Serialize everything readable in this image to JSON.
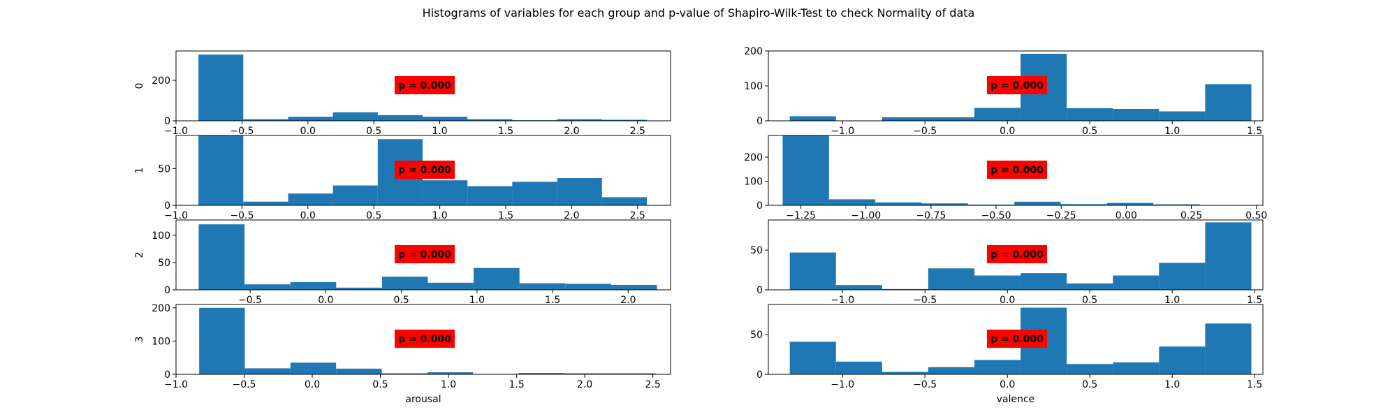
{
  "figure": {
    "title": "Histograms of variables for each group and p-value of Shapiro-Wilk-Test to check Normality of data"
  },
  "chart_data": [
    {
      "type": "bar",
      "column": "arousal",
      "group": "0",
      "ylabel": "0",
      "xlabel": "",
      "p_text": "p = 0.000",
      "xlim": [
        -1.0,
        2.75
      ],
      "ylim": [
        0,
        345
      ],
      "xticks": [
        -1.0,
        -0.5,
        0.0,
        0.5,
        1.0,
        1.5,
        2.0,
        2.5
      ],
      "xtick_labels": [
        "−1.0",
        "−0.5",
        "0.0",
        "0.5",
        "1.0",
        "1.5",
        "2.0",
        "2.5"
      ],
      "yticks": [
        0,
        200
      ],
      "ytick_labels": [
        "0",
        "200"
      ],
      "bin_edges": [
        -0.83,
        -0.49,
        -0.15,
        0.19,
        0.53,
        0.87,
        1.21,
        1.55,
        1.89,
        2.23,
        2.57
      ],
      "counts": [
        327,
        8,
        20,
        42,
        28,
        20,
        8,
        3,
        8,
        5
      ]
    },
    {
      "type": "bar",
      "column": "valence",
      "group": "0",
      "ylabel": "",
      "xlabel": "",
      "p_text": "p = 0.000",
      "xlim": [
        -1.45,
        1.55
      ],
      "ylim": [
        0,
        200
      ],
      "xticks": [
        -1.0,
        -0.5,
        0.0,
        0.5,
        1.0,
        1.5
      ],
      "xtick_labels": [
        "−1.0",
        "−0.5",
        "0.0",
        "0.5",
        "1.0",
        "1.5"
      ],
      "yticks": [
        0,
        100,
        200
      ],
      "ytick_labels": [
        "0",
        "100",
        "200"
      ],
      "bin_edges": [
        -1.32,
        -1.04,
        -0.76,
        -0.48,
        -0.2,
        0.08,
        0.36,
        0.64,
        0.92,
        1.2,
        1.48
      ],
      "counts": [
        13,
        0,
        10,
        10,
        37,
        192,
        36,
        34,
        27,
        105
      ]
    },
    {
      "type": "bar",
      "column": "arousal",
      "group": "1",
      "ylabel": "1",
      "xlabel": "",
      "p_text": "p = 0.000",
      "xlim": [
        -1.0,
        2.75
      ],
      "ylim": [
        0,
        95
      ],
      "xticks": [
        -1.0,
        -0.5,
        0.0,
        0.5,
        1.0,
        1.5,
        2.0,
        2.5
      ],
      "xtick_labels": [
        "−1.0",
        "−0.5",
        "0.0",
        "0.5",
        "1.0",
        "1.5",
        "2.0",
        "2.5"
      ],
      "yticks": [
        0,
        50
      ],
      "ytick_labels": [
        "0",
        "50"
      ],
      "bin_edges": [
        -0.83,
        -0.49,
        -0.15,
        0.19,
        0.53,
        0.87,
        1.21,
        1.55,
        1.89,
        2.23,
        2.57
      ],
      "counts": [
        97,
        5,
        16,
        27,
        90,
        34,
        26,
        32,
        37,
        11
      ]
    },
    {
      "type": "bar",
      "column": "valence",
      "group": "1",
      "ylabel": "",
      "xlabel": "",
      "p_text": "p = 0.000",
      "xlim": [
        -1.375,
        0.525
      ],
      "ylim": [
        0,
        290
      ],
      "xticks": [
        -1.25,
        -1.0,
        -0.75,
        -0.5,
        -0.25,
        0.0,
        0.25,
        0.5
      ],
      "xtick_labels": [
        "−1.25",
        "−1.00",
        "−0.75",
        "−0.50",
        "−0.25",
        "0.00",
        "0.25",
        "0.50"
      ],
      "yticks": [
        0,
        100,
        200
      ],
      "ytick_labels": [
        "0",
        "100",
        "200"
      ],
      "bin_edges": [
        -1.32,
        -1.142,
        -0.964,
        -0.786,
        -0.608,
        -0.43,
        -0.252,
        -0.074,
        0.104,
        0.282,
        0.46
      ],
      "counts": [
        290,
        25,
        12,
        8,
        3,
        15,
        5,
        10,
        4,
        1
      ]
    },
    {
      "type": "bar",
      "column": "arousal",
      "group": "2",
      "ylabel": "2",
      "xlabel": "",
      "p_text": "p = 0.000",
      "xlim": [
        -0.99,
        2.28
      ],
      "ylim": [
        0,
        128
      ],
      "xticks": [
        -0.5,
        0.0,
        0.5,
        1.0,
        1.5,
        2.0
      ],
      "xtick_labels": [
        "−0.5",
        "0.0",
        "0.5",
        "1.0",
        "1.5",
        "2.0"
      ],
      "yticks": [
        0,
        50,
        100
      ],
      "ytick_labels": [
        "0",
        "50",
        "100"
      ],
      "bin_edges": [
        -0.84,
        -0.537,
        -0.234,
        0.069,
        0.372,
        0.675,
        0.978,
        1.281,
        1.584,
        1.887,
        2.19
      ],
      "counts": [
        120,
        10,
        14,
        4,
        24,
        13,
        40,
        12,
        11,
        9
      ]
    },
    {
      "type": "bar",
      "column": "valence",
      "group": "2",
      "ylabel": "",
      "xlabel": "",
      "p_text": "p = 0.000",
      "xlim": [
        -1.45,
        1.55
      ],
      "ylim": [
        0,
        88
      ],
      "xticks": [
        -1.0,
        -0.5,
        0.0,
        0.5,
        1.0,
        1.5
      ],
      "xtick_labels": [
        "−1.0",
        "−0.5",
        "0.0",
        "0.5",
        "1.0",
        "1.5"
      ],
      "yticks": [
        0,
        50
      ],
      "ytick_labels": [
        "0",
        "50"
      ],
      "bin_edges": [
        -1.32,
        -1.04,
        -0.76,
        -0.48,
        -0.2,
        0.08,
        0.36,
        0.64,
        0.92,
        1.2,
        1.48
      ],
      "counts": [
        47,
        6,
        1,
        27,
        18,
        21,
        8,
        18,
        34,
        85
      ]
    },
    {
      "type": "bar",
      "column": "arousal",
      "group": "3",
      "ylabel": "3",
      "xlabel": "arousal",
      "p_text": "p = 0.000",
      "xlim": [
        -1.0,
        2.63
      ],
      "ylim": [
        0,
        210
      ],
      "xticks": [
        -1.0,
        -0.5,
        0.0,
        0.5,
        1.0,
        1.5,
        2.0,
        2.5
      ],
      "xtick_labels": [
        "−1.0",
        "−0.5",
        "0.0",
        "0.5",
        "1.0",
        "1.5",
        "2.0",
        "2.5"
      ],
      "yticks": [
        0,
        100,
        200
      ],
      "ytick_labels": [
        "0",
        "100",
        "200"
      ],
      "bin_edges": [
        -0.83,
        -0.495,
        -0.16,
        0.175,
        0.51,
        0.845,
        1.18,
        1.515,
        1.85,
        2.185,
        2.52
      ],
      "counts": [
        200,
        18,
        35,
        17,
        3,
        6,
        0,
        4,
        3,
        3
      ]
    },
    {
      "type": "bar",
      "column": "valence",
      "group": "3",
      "ylabel": "",
      "xlabel": "valence",
      "p_text": "p = 0.000",
      "xlim": [
        -1.45,
        1.55
      ],
      "ylim": [
        0,
        88
      ],
      "xticks": [
        -1.0,
        -0.5,
        0.0,
        0.5,
        1.0,
        1.5
      ],
      "xtick_labels": [
        "−1.0",
        "−0.5",
        "0.0",
        "0.5",
        "1.0",
        "1.5"
      ],
      "yticks": [
        0,
        50
      ],
      "ytick_labels": [
        "0",
        "50"
      ],
      "bin_edges": [
        -1.32,
        -1.04,
        -0.76,
        -0.48,
        -0.2,
        0.08,
        0.36,
        0.64,
        0.92,
        1.2,
        1.48
      ],
      "counts": [
        41,
        16,
        3,
        9,
        18,
        84,
        13,
        15,
        35,
        64
      ]
    }
  ],
  "colors": {
    "bar": "#1f77b4",
    "p_box": "#ff0000"
  }
}
